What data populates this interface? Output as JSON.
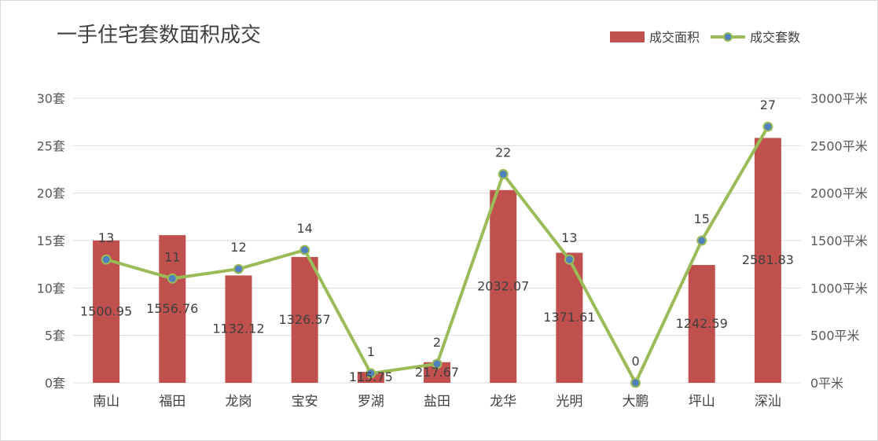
{
  "chart_data": {
    "type": "bar",
    "title": "一手住宅套数面积成交",
    "categories": [
      "南山",
      "福田",
      "龙岗",
      "宝安",
      "罗湖",
      "盐田",
      "龙华",
      "光明",
      "大鹏",
      "坪山",
      "深汕"
    ],
    "series": [
      {
        "name": "成交面积",
        "type": "bar",
        "axis": "right",
        "color": "#c0504d",
        "values": [
          1500.95,
          1556.76,
          1132.12,
          1326.57,
          115.75,
          217.67,
          2032.07,
          1371.61,
          0,
          1242.59,
          2581.83
        ],
        "labels": [
          "1500.95",
          "1556.76",
          "1132.12",
          "1326.57",
          "115.75",
          "217.67",
          "2032.07",
          "1371.61",
          "",
          "1242.59",
          "2581.83"
        ]
      },
      {
        "name": "成交套数",
        "type": "line",
        "axis": "left",
        "color": "#9bbb59",
        "marker_color": "#4f81bd",
        "values": [
          13,
          11,
          12,
          14,
          1,
          2,
          22,
          13,
          0,
          15,
          27
        ],
        "labels": [
          "13",
          "11",
          "12",
          "14",
          "1",
          "2",
          "22",
          "13",
          "0",
          "15",
          "27"
        ]
      }
    ],
    "y_left": {
      "ylim": [
        0,
        30
      ],
      "ticks": [
        "0套",
        "5套",
        "10套",
        "15套",
        "20套",
        "25套",
        "30套"
      ]
    },
    "y_right": {
      "ylim": [
        0,
        3000
      ],
      "ticks": [
        "0平米",
        "500平米",
        "1000平米",
        "1500平米",
        "2000平米",
        "2500平米",
        "3000平米"
      ]
    },
    "grid": true,
    "legend_position": "top-right"
  }
}
